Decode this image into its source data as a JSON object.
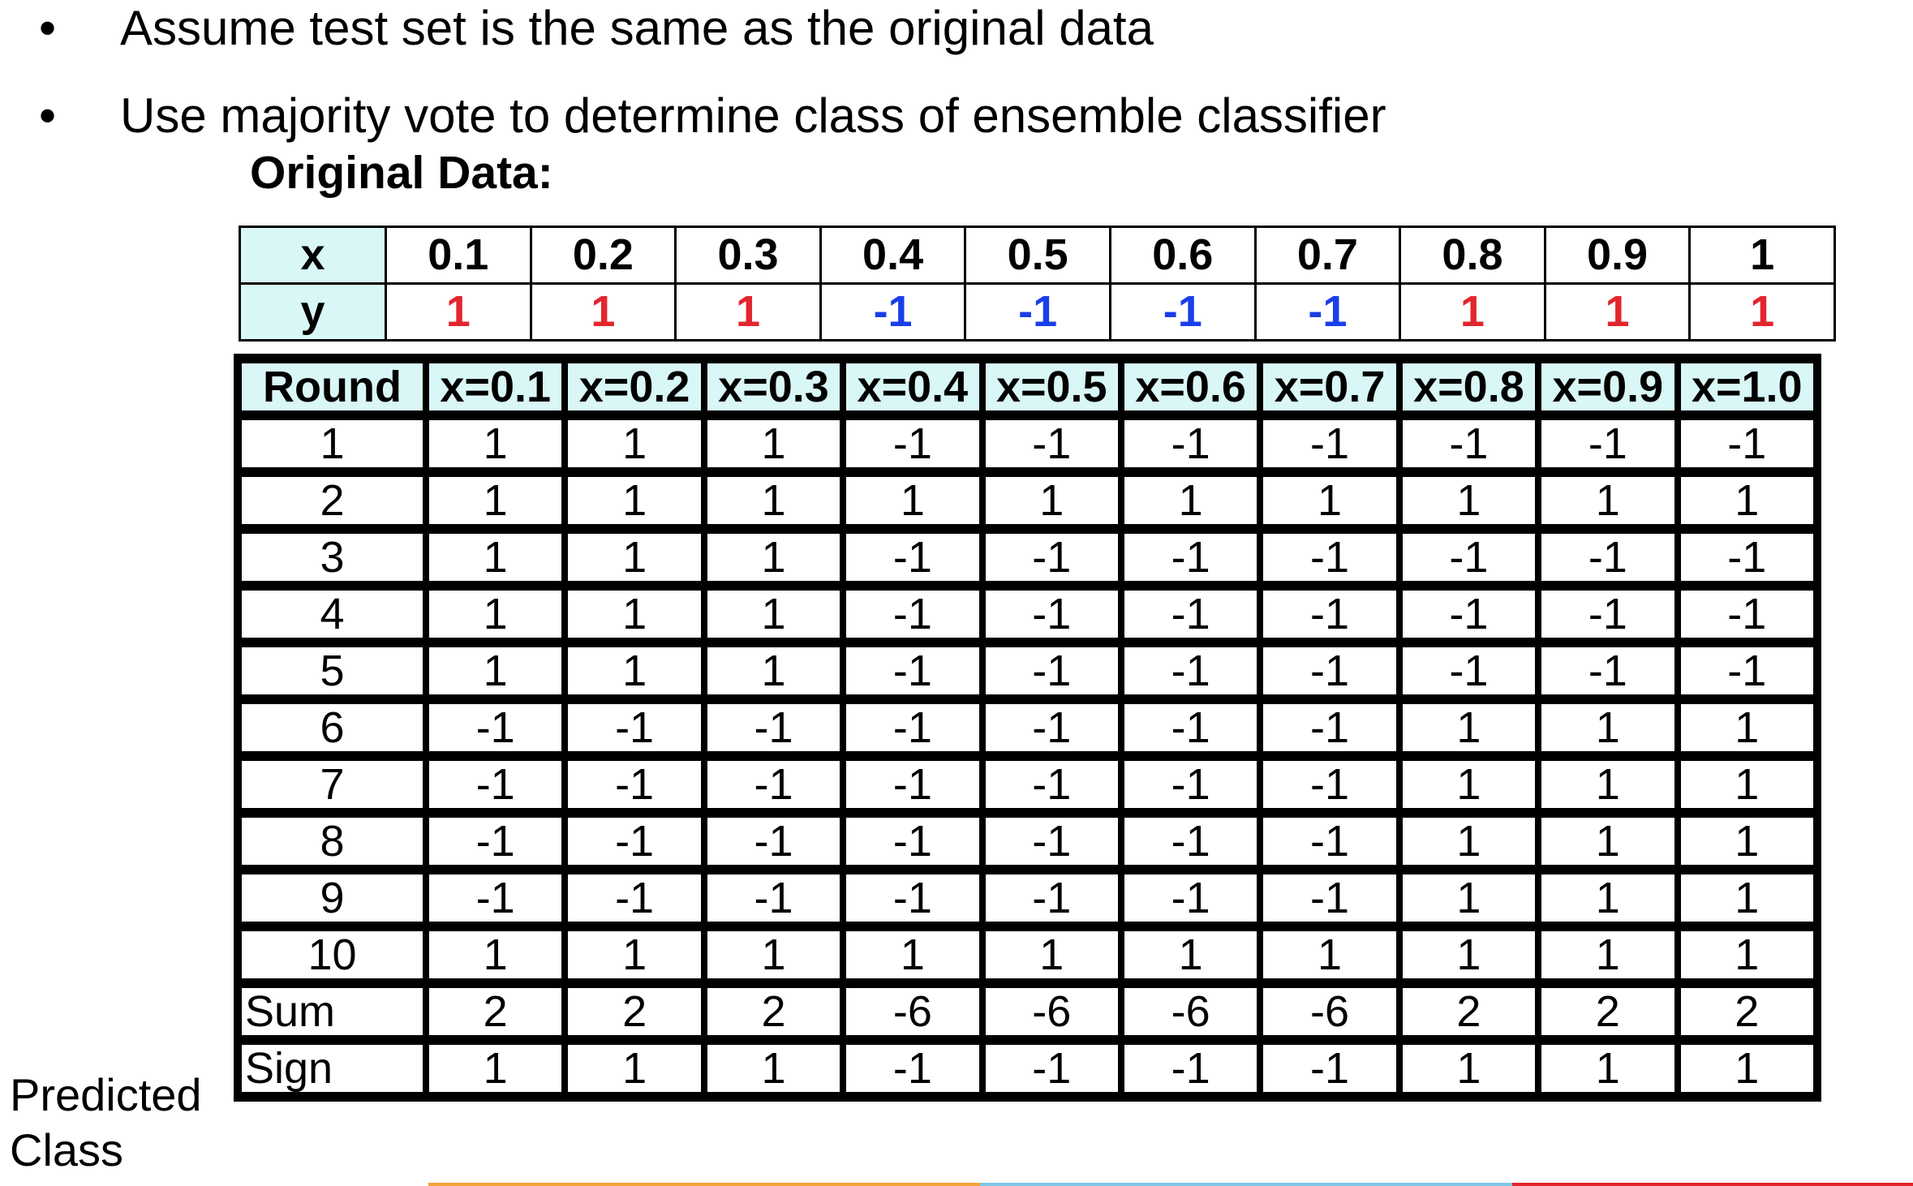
{
  "bullets": [
    {
      "symbol": "•",
      "text": "Assume test set is the same as the original data"
    },
    {
      "symbol": "•",
      "text": "Use majority vote to determine class of ensemble classifier"
    }
  ],
  "original_title": "Original Data:",
  "original_table": {
    "x_label": "x",
    "y_label": "y",
    "x": [
      "0.1",
      "0.2",
      "0.3",
      "0.4",
      "0.5",
      "0.6",
      "0.7",
      "0.8",
      "0.9",
      "1"
    ],
    "y": [
      "1",
      "1",
      "1",
      "-1",
      "-1",
      "-1",
      "-1",
      "1",
      "1",
      "1"
    ],
    "colors": {
      "positive": "#e3262d",
      "negative": "#1a3ee8",
      "header_bg": "#d9f7f7"
    }
  },
  "rounds_table": {
    "header": [
      "Round",
      "x=0.1",
      "x=0.2",
      "x=0.3",
      "x=0.4",
      "x=0.5",
      "x=0.6",
      "x=0.7",
      "x=0.8",
      "x=0.9",
      "x=1.0"
    ],
    "rows": [
      [
        "1",
        "1",
        "1",
        "1",
        "-1",
        "-1",
        "-1",
        "-1",
        "-1",
        "-1",
        "-1"
      ],
      [
        "2",
        "1",
        "1",
        "1",
        "1",
        "1",
        "1",
        "1",
        "1",
        "1",
        "1"
      ],
      [
        "3",
        "1",
        "1",
        "1",
        "-1",
        "-1",
        "-1",
        "-1",
        "-1",
        "-1",
        "-1"
      ],
      [
        "4",
        "1",
        "1",
        "1",
        "-1",
        "-1",
        "-1",
        "-1",
        "-1",
        "-1",
        "-1"
      ],
      [
        "5",
        "1",
        "1",
        "1",
        "-1",
        "-1",
        "-1",
        "-1",
        "-1",
        "-1",
        "-1"
      ],
      [
        "6",
        "-1",
        "-1",
        "-1",
        "-1",
        "-1",
        "-1",
        "-1",
        "1",
        "1",
        "1"
      ],
      [
        "7",
        "-1",
        "-1",
        "-1",
        "-1",
        "-1",
        "-1",
        "-1",
        "1",
        "1",
        "1"
      ],
      [
        "8",
        "-1",
        "-1",
        "-1",
        "-1",
        "-1",
        "-1",
        "-1",
        "1",
        "1",
        "1"
      ],
      [
        "9",
        "-1",
        "-1",
        "-1",
        "-1",
        "-1",
        "-1",
        "-1",
        "1",
        "1",
        "1"
      ],
      [
        "10",
        "1",
        "1",
        "1",
        "1",
        "1",
        "1",
        "1",
        "1",
        "1",
        "1"
      ]
    ],
    "sum_row": [
      "Sum",
      "2",
      "2",
      "2",
      "-6",
      "-6",
      "-6",
      "-6",
      "2",
      "2",
      "2"
    ],
    "sign_row": [
      "Sign",
      "1",
      "1",
      "1",
      "-1",
      "-1",
      "-1",
      "-1",
      "1",
      "1",
      "1"
    ]
  },
  "predicted_label": [
    "Predicted",
    "Class"
  ],
  "footer_colors": [
    "#f2a33a",
    "#7fc8e8",
    "#e3262d"
  ]
}
